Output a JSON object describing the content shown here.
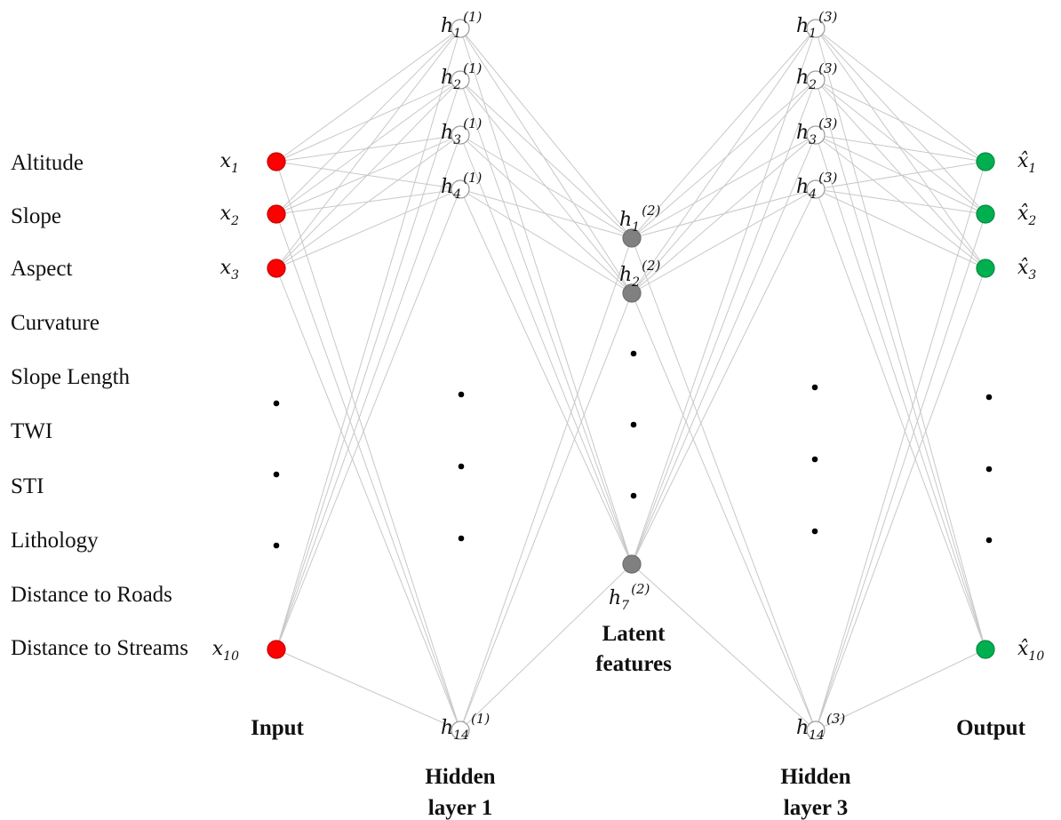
{
  "features": [
    "Altitude",
    "Slope",
    "Aspect",
    "Curvature",
    "Slope Length",
    "TWI",
    "STI",
    "Lithology",
    "Distance to Roads",
    "Distance to Streams"
  ],
  "layers": {
    "input": {
      "title": "Input",
      "nodes": [
        {
          "base": "x",
          "sub": "1",
          "sup": ""
        },
        {
          "base": "x",
          "sub": "2",
          "sup": ""
        },
        {
          "base": "x",
          "sub": "3",
          "sup": ""
        },
        {
          "base": "x",
          "sub": "10",
          "sup": ""
        }
      ],
      "color": "#ff0000"
    },
    "hidden1": {
      "title_lines": [
        "Hidden",
        "layer 1"
      ],
      "nodes": [
        {
          "base": "h",
          "sub": "1",
          "sup": "(1)"
        },
        {
          "base": "h",
          "sub": "2",
          "sup": "(1)"
        },
        {
          "base": "h",
          "sub": "3",
          "sup": "(1)"
        },
        {
          "base": "h",
          "sub": "4",
          "sup": "(1)"
        },
        {
          "base": "h",
          "sub": "14",
          "sup": "(1)"
        }
      ],
      "color": "#ffffff"
    },
    "latent": {
      "title_lines": [
        "Latent",
        "features"
      ],
      "nodes": [
        {
          "base": "h",
          "sub": "1",
          "sup": "(2)"
        },
        {
          "base": "h",
          "sub": "2",
          "sup": "(2)"
        },
        {
          "base": "h",
          "sub": "7",
          "sup": "(2)"
        }
      ],
      "color": "#808080"
    },
    "hidden3": {
      "title_lines": [
        "Hidden",
        "layer 3"
      ],
      "nodes": [
        {
          "base": "h",
          "sub": "1",
          "sup": "(3)"
        },
        {
          "base": "h",
          "sub": "2",
          "sup": "(3)"
        },
        {
          "base": "h",
          "sub": "3",
          "sup": "(3)"
        },
        {
          "base": "h",
          "sub": "4",
          "sup": "(3)"
        },
        {
          "base": "h",
          "sub": "14",
          "sup": "(3)"
        }
      ],
      "color": "#ffffff"
    },
    "output": {
      "title": "Output",
      "nodes": [
        {
          "base": "x̂",
          "sub": "1",
          "sup": ""
        },
        {
          "base": "x̂",
          "sub": "2",
          "sup": ""
        },
        {
          "base": "x̂",
          "sub": "3",
          "sup": ""
        },
        {
          "base": "x̂",
          "sub": "10",
          "sup": ""
        }
      ],
      "color": "#00b050"
    }
  }
}
